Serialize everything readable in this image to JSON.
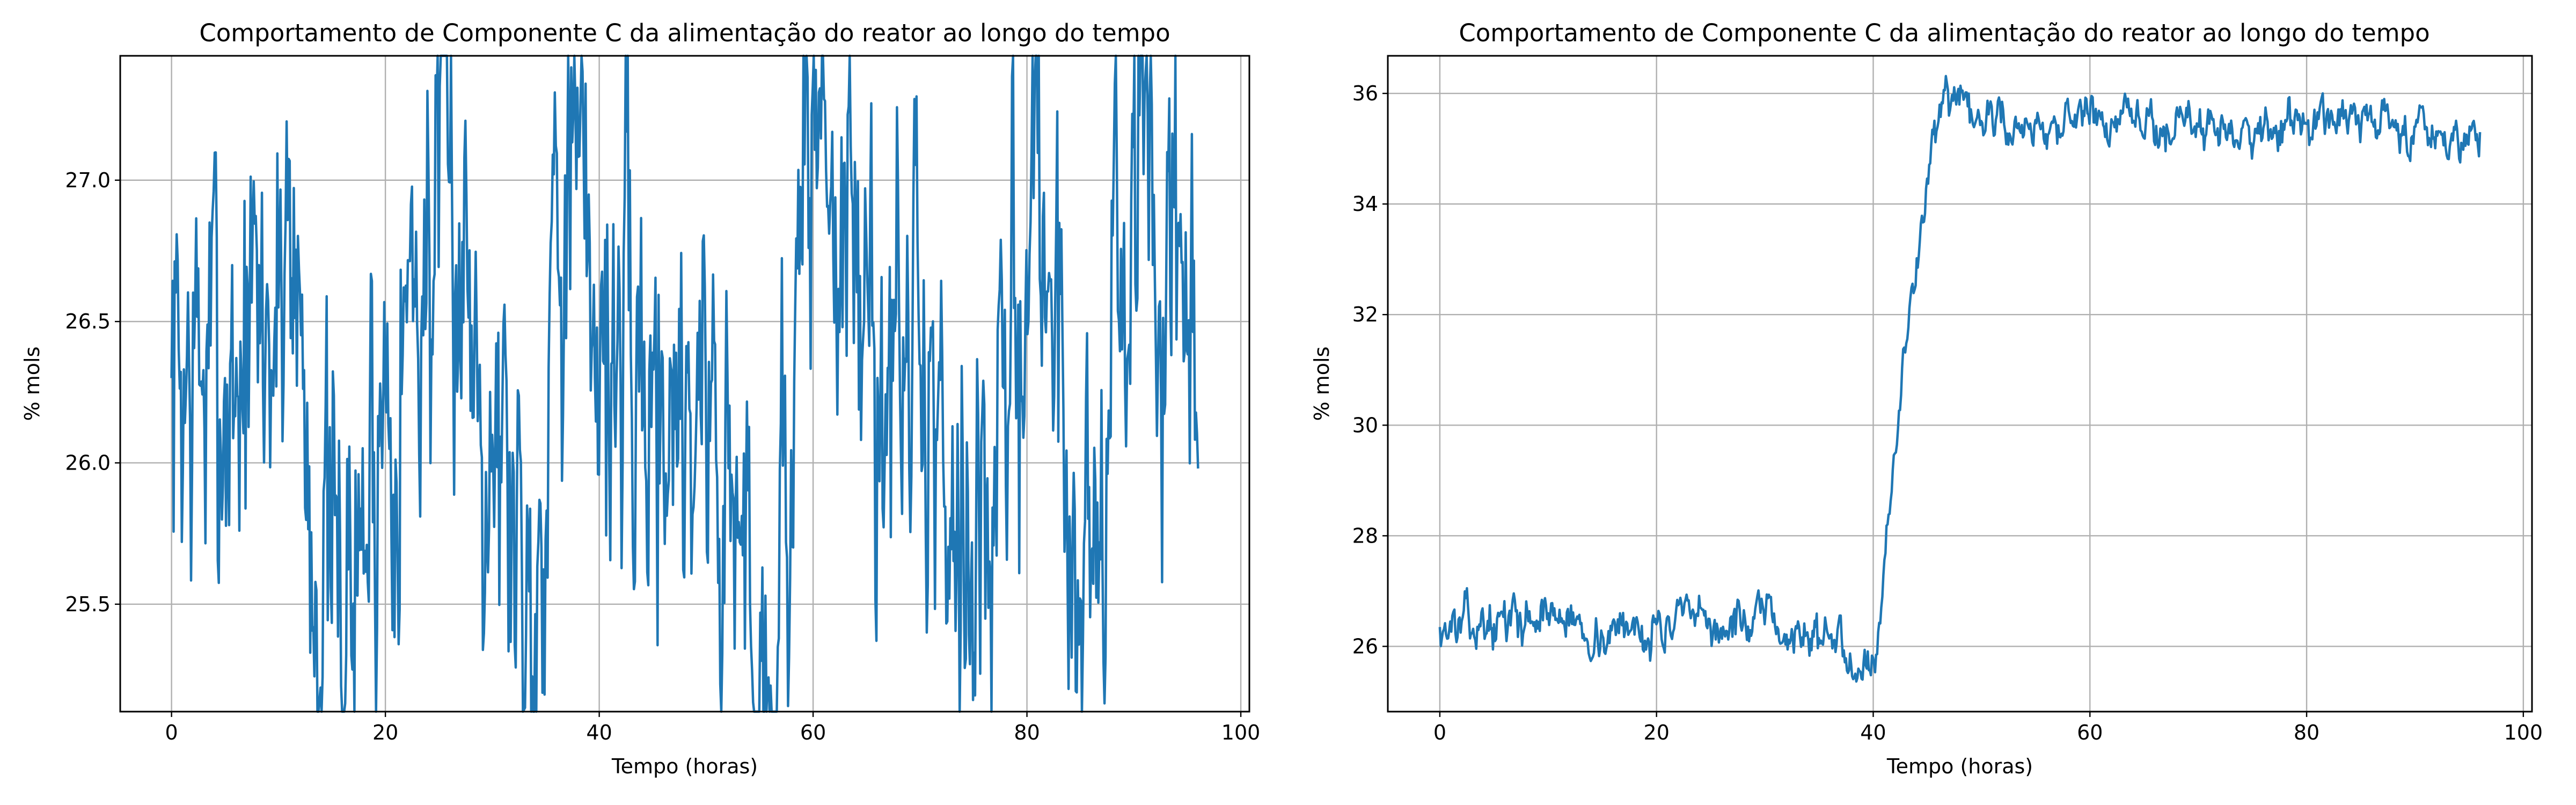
{
  "chart_data": [
    {
      "type": "line",
      "title": "Comportamento de Componente C da alimentação do reator ao longo do tempo",
      "xlabel": "Tempo (horas)",
      "ylabel": "% mols",
      "xlim": [
        -4.8,
        100.8
      ],
      "ylim": [
        25.12,
        27.44
      ],
      "xticks": [
        0,
        20,
        40,
        60,
        80,
        100
      ],
      "yticks": [
        25.5,
        26.0,
        26.5,
        27.0
      ],
      "xtick_labels": [
        "0",
        "20",
        "40",
        "60",
        "80",
        "100"
      ],
      "ytick_labels": [
        "25.5",
        "26.0",
        "26.5",
        "27.0"
      ],
      "grid": true,
      "line_color": "#1f77b4",
      "noise": {
        "seed": 7,
        "n": 1000,
        "x_end": 96,
        "base": 26.3,
        "ar": 0.55,
        "amp": 0.36
      },
      "series": [
        {
          "x": [
            0,
            5,
            10,
            11,
            13.5,
            17,
            20,
            26,
            34,
            36,
            42,
            50,
            56,
            59,
            60,
            66,
            70,
            76.5,
            81,
            85,
            91.5,
            92,
            95,
            96
          ],
          "y": [
            26.3,
            26.3,
            26.55,
            27.1,
            25.55,
            25.5,
            26.3,
            27.0,
            25.45,
            27.1,
            26.3,
            26.25,
            25.2,
            26.7,
            27.35,
            26.3,
            26.35,
            25.65,
            27.1,
            25.5,
            27.3,
            26.6,
            26.4,
            25.98
          ]
        }
      ]
    },
    {
      "type": "line",
      "title": "Comportamento de Componente C da alimentação do reator ao longo do tempo",
      "xlabel": "Tempo (horas)",
      "ylabel": "% mols",
      "xlim": [
        -4.8,
        100.8
      ],
      "ylim": [
        24.82,
        36.68
      ],
      "xticks": [
        0,
        20,
        40,
        60,
        80,
        100
      ],
      "yticks": [
        26,
        28,
        30,
        32,
        34,
        36
      ],
      "xtick_labels": [
        "0",
        "20",
        "40",
        "60",
        "80",
        "100"
      ],
      "ytick_labels": [
        "26",
        "28",
        "30",
        "32",
        "34",
        "36"
      ],
      "grid": true,
      "line_color": "#1f77b4",
      "noise": {
        "seed": 13,
        "n": 1000,
        "x_end": 96,
        "base": 26.3,
        "ar": 0.7,
        "amp": 0.17
      },
      "series": [
        {
          "x": [
            0,
            5,
            10,
            15,
            20,
            25,
            30,
            35,
            40,
            40.5,
            41,
            42,
            43,
            44,
            45,
            46,
            47,
            50,
            60,
            70,
            80,
            90,
            96
          ],
          "y": [
            26.35,
            26.4,
            26.6,
            26.2,
            26.4,
            26.35,
            26.4,
            26.15,
            25.8,
            26.3,
            27.5,
            29.5,
            31.4,
            33.0,
            34.5,
            35.5,
            35.6,
            35.5,
            35.45,
            35.4,
            35.45,
            35.4,
            35.3
          ]
        }
      ]
    }
  ]
}
